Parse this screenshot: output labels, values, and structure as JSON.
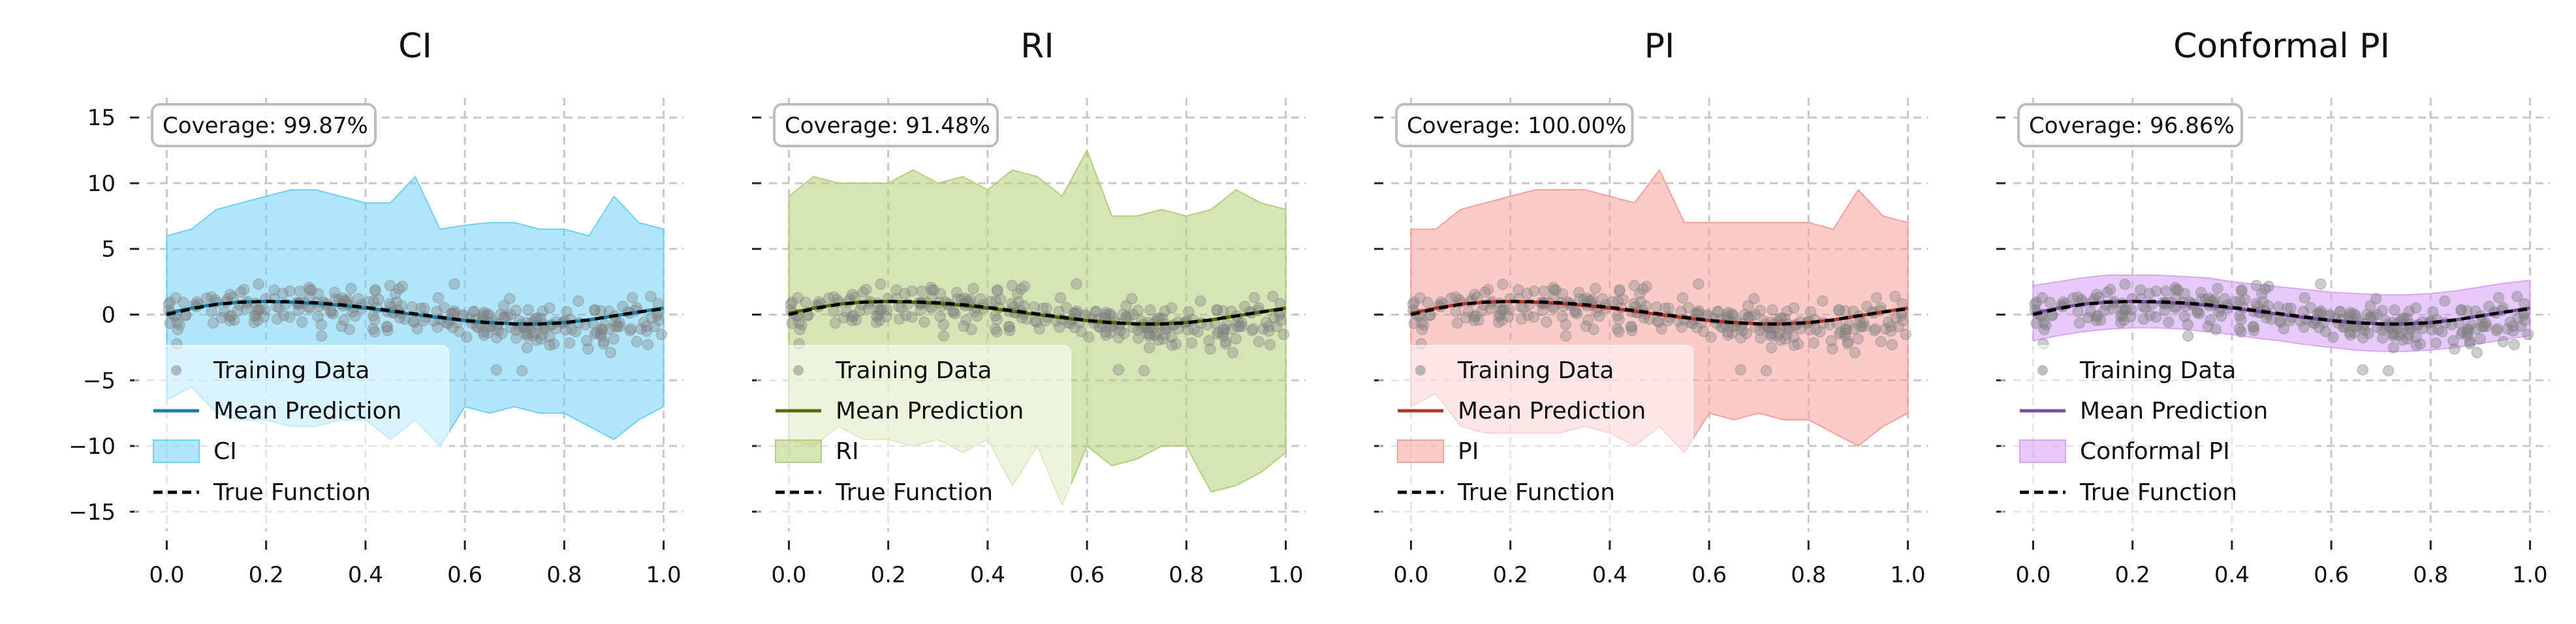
{
  "figure": {
    "background": "#ffffff",
    "grid_color": "#c8c8c8",
    "true_function_color": "#000000",
    "training_point_color": "#808080"
  },
  "shared": {
    "xlim": [
      -0.04,
      1.04
    ],
    "ylim": [
      -16.5,
      16.5
    ],
    "x_ticks": [
      0.0,
      0.2,
      0.4,
      0.6,
      0.8,
      1.0
    ],
    "x_tick_labels": [
      "0.0",
      "0.2",
      "0.4",
      "0.6",
      "0.8",
      "1.0"
    ],
    "y_ticks": [
      15,
      10,
      5,
      0,
      -5,
      -10,
      -15
    ],
    "y_tick_labels": [
      "15",
      "10",
      "5",
      "0",
      "−5",
      "−10",
      "−15"
    ],
    "grid": true,
    "legend_location": "lower-left",
    "legend_labels": {
      "training": "Training Data",
      "mean": "Mean Prediction",
      "true": "True Function"
    }
  },
  "chart_data": [
    {
      "type": "line",
      "title": "CI",
      "coverage_text": "Coverage: 99.87%",
      "band_label": "CI",
      "mean_color": "#1a7fa0",
      "band_color": "#6fd0f5",
      "band_opacity": 0.55,
      "point_opacity": 0.35,
      "x": [
        0.0,
        0.05,
        0.1,
        0.15,
        0.2,
        0.25,
        0.3,
        0.35,
        0.4,
        0.45,
        0.5,
        0.55,
        0.6,
        0.65,
        0.7,
        0.75,
        0.8,
        0.85,
        0.9,
        0.95,
        1.0
      ],
      "true_function": [
        0.0,
        0.45,
        0.78,
        0.95,
        1.0,
        0.98,
        0.9,
        0.75,
        0.55,
        0.3,
        0.05,
        -0.2,
        -0.45,
        -0.62,
        -0.72,
        -0.72,
        -0.62,
        -0.4,
        -0.1,
        0.2,
        0.45
      ],
      "mean_prediction": [
        0.1,
        0.5,
        0.8,
        0.95,
        1.0,
        0.95,
        0.85,
        0.7,
        0.5,
        0.25,
        0.0,
        -0.25,
        -0.45,
        -0.6,
        -0.7,
        -0.7,
        -0.6,
        -0.4,
        -0.1,
        0.2,
        0.5
      ],
      "band_upper": [
        6.0,
        6.5,
        8.0,
        8.5,
        9.0,
        9.5,
        9.5,
        9.0,
        8.5,
        8.5,
        10.5,
        6.5,
        6.8,
        7.0,
        7.0,
        6.5,
        6.5,
        6.0,
        9.0,
        7.0,
        6.5
      ],
      "band_lower": [
        -6.5,
        -5.5,
        -7.5,
        -8.0,
        -8.0,
        -8.5,
        -8.5,
        -8.0,
        -8.0,
        -9.5,
        -8.0,
        -10.0,
        -7.0,
        -7.5,
        -7.0,
        -7.5,
        -7.5,
        -8.5,
        -9.5,
        -8.0,
        -7.0
      ]
    },
    {
      "type": "line",
      "title": "RI",
      "coverage_text": "Coverage: 91.48%",
      "band_label": "RI",
      "mean_color": "#4e6e00",
      "band_color": "#b5cf78",
      "band_opacity": 0.55,
      "point_opacity": 0.35,
      "x": [
        0.0,
        0.05,
        0.1,
        0.15,
        0.2,
        0.25,
        0.3,
        0.35,
        0.4,
        0.45,
        0.5,
        0.55,
        0.6,
        0.65,
        0.7,
        0.75,
        0.8,
        0.85,
        0.9,
        0.95,
        1.0
      ],
      "true_function": [
        0.0,
        0.45,
        0.78,
        0.95,
        1.0,
        0.98,
        0.9,
        0.75,
        0.55,
        0.3,
        0.05,
        -0.2,
        -0.45,
        -0.62,
        -0.72,
        -0.72,
        -0.62,
        -0.4,
        -0.1,
        0.2,
        0.45
      ],
      "mean_prediction": [
        0.1,
        0.5,
        0.8,
        0.95,
        1.0,
        0.95,
        0.85,
        0.7,
        0.5,
        0.25,
        0.0,
        -0.25,
        -0.45,
        -0.6,
        -0.7,
        -0.7,
        -0.6,
        -0.4,
        -0.1,
        0.2,
        0.5
      ],
      "band_upper": [
        9.0,
        10.5,
        10.0,
        10.0,
        10.0,
        11.0,
        10.0,
        10.5,
        9.5,
        11.0,
        10.5,
        9.0,
        12.5,
        7.5,
        7.5,
        8.0,
        7.5,
        8.0,
        9.5,
        8.5,
        8.0
      ],
      "band_lower": [
        -9.5,
        -10.0,
        -8.5,
        -9.5,
        -9.5,
        -10.0,
        -9.5,
        -10.5,
        -9.5,
        -13.0,
        -10.0,
        -14.5,
        -10.0,
        -11.5,
        -11.0,
        -10.0,
        -10.0,
        -13.5,
        -13.0,
        -12.0,
        -10.5
      ]
    },
    {
      "type": "line",
      "title": "PI",
      "coverage_text": "Coverage: 100.00%",
      "band_label": "PI",
      "mean_color": "#b5362a",
      "band_color": "#f5a09a",
      "band_opacity": 0.55,
      "point_opacity": 0.35,
      "x": [
        0.0,
        0.05,
        0.1,
        0.15,
        0.2,
        0.25,
        0.3,
        0.35,
        0.4,
        0.45,
        0.5,
        0.55,
        0.6,
        0.65,
        0.7,
        0.75,
        0.8,
        0.85,
        0.9,
        0.95,
        1.0
      ],
      "true_function": [
        0.0,
        0.45,
        0.78,
        0.95,
        1.0,
        0.98,
        0.9,
        0.75,
        0.55,
        0.3,
        0.05,
        -0.2,
        -0.45,
        -0.62,
        -0.72,
        -0.72,
        -0.62,
        -0.4,
        -0.1,
        0.2,
        0.45
      ],
      "mean_prediction": [
        0.1,
        0.5,
        0.8,
        0.95,
        1.0,
        0.95,
        0.85,
        0.7,
        0.5,
        0.25,
        0.0,
        -0.25,
        -0.45,
        -0.6,
        -0.7,
        -0.7,
        -0.6,
        -0.4,
        -0.1,
        0.2,
        0.5
      ],
      "band_upper": [
        6.5,
        6.5,
        8.0,
        8.5,
        9.0,
        9.5,
        9.5,
        9.5,
        9.0,
        8.5,
        11.0,
        7.0,
        7.0,
        7.0,
        7.0,
        7.0,
        7.0,
        6.5,
        9.5,
        7.5,
        7.0
      ],
      "band_lower": [
        -7.0,
        -6.0,
        -8.5,
        -9.0,
        -9.0,
        -9.0,
        -9.0,
        -8.5,
        -9.0,
        -10.0,
        -8.5,
        -10.5,
        -7.5,
        -8.0,
        -7.5,
        -8.0,
        -8.0,
        -9.0,
        -10.0,
        -8.5,
        -7.5
      ]
    },
    {
      "type": "line",
      "title": "Conformal PI",
      "coverage_text": "Coverage: 96.86%",
      "band_label": "Conformal PI",
      "mean_color": "#7a4ea0",
      "band_color": "#d7a6f5",
      "band_opacity": 0.6,
      "point_opacity": 0.4,
      "x": [
        0.0,
        0.05,
        0.1,
        0.15,
        0.2,
        0.25,
        0.3,
        0.35,
        0.4,
        0.45,
        0.5,
        0.55,
        0.6,
        0.65,
        0.7,
        0.75,
        0.8,
        0.85,
        0.9,
        0.95,
        1.0
      ],
      "true_function": [
        0.0,
        0.45,
        0.78,
        0.95,
        1.0,
        0.98,
        0.9,
        0.75,
        0.55,
        0.3,
        0.05,
        -0.2,
        -0.45,
        -0.62,
        -0.72,
        -0.72,
        -0.62,
        -0.4,
        -0.1,
        0.2,
        0.45
      ],
      "mean_prediction": [
        0.1,
        0.5,
        0.8,
        0.95,
        1.0,
        0.95,
        0.85,
        0.7,
        0.5,
        0.25,
        0.0,
        -0.25,
        -0.45,
        -0.6,
        -0.7,
        -0.7,
        -0.6,
        -0.4,
        -0.1,
        0.2,
        0.5
      ],
      "band_upper": [
        2.2,
        2.5,
        2.8,
        3.0,
        3.0,
        3.0,
        2.9,
        2.8,
        2.5,
        2.3,
        2.1,
        1.9,
        1.7,
        1.6,
        1.5,
        1.5,
        1.6,
        1.8,
        2.1,
        2.4,
        2.6
      ],
      "band_lower": [
        -2.0,
        -1.6,
        -1.3,
        -1.1,
        -1.0,
        -1.0,
        -1.1,
        -1.3,
        -1.5,
        -1.8,
        -2.0,
        -2.3,
        -2.5,
        -2.7,
        -2.8,
        -2.8,
        -2.7,
        -2.5,
        -2.2,
        -1.9,
        -1.6
      ]
    }
  ]
}
